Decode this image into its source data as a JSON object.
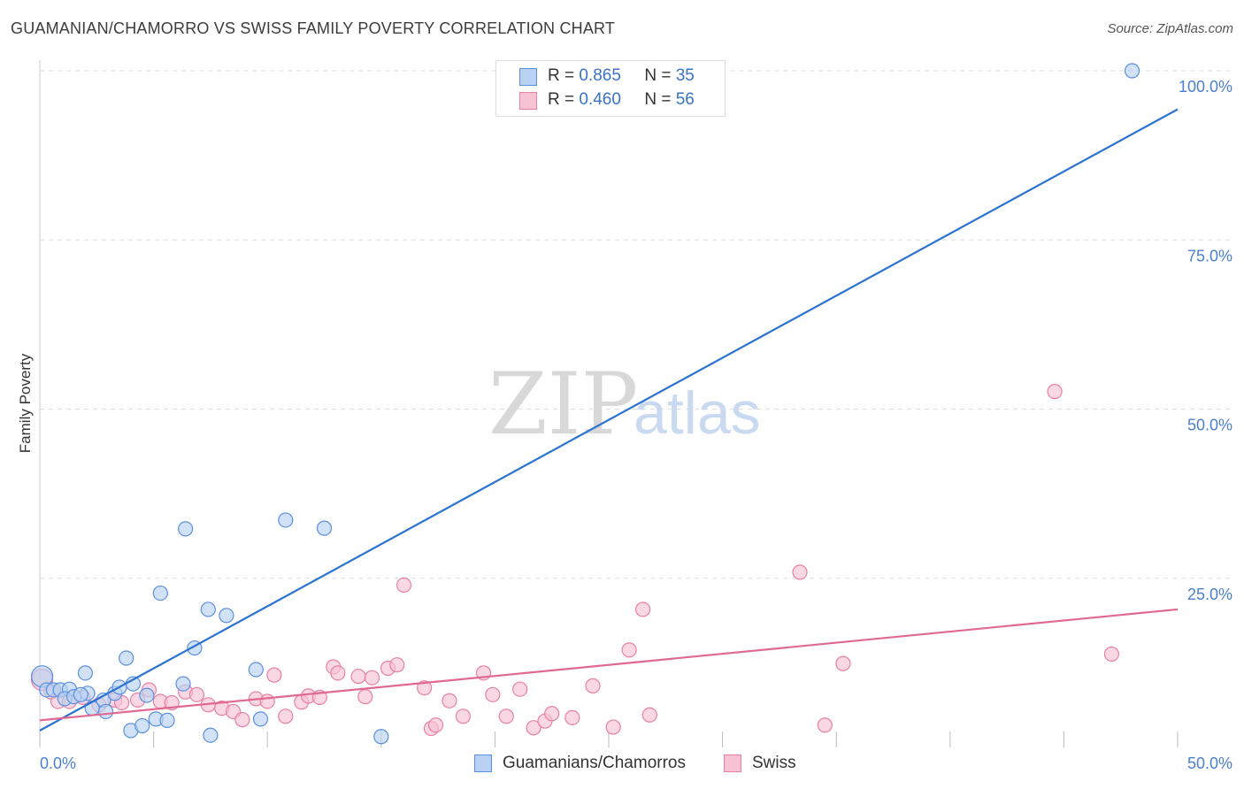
{
  "title": "GUAMANIAN/CHAMORRO VS SWISS FAMILY POVERTY CORRELATION CHART",
  "source": "Source: ZipAtlas.com",
  "colors": {
    "blue": "#5b8fe0",
    "blue_fill": "#b9d2f3",
    "blue_line": "#2a72d2",
    "pink": "#e97fa4",
    "pink_fill": "#f7c3d4",
    "pink_line": "#e06994",
    "tick_text": "#4a7fd0",
    "grid": "#dddddd"
  },
  "legend": {
    "r_label": "R =",
    "n_label": "N =",
    "series": [
      {
        "r": "0.865",
        "n": "35"
      },
      {
        "r": "0.460",
        "n": "56"
      }
    ]
  },
  "bottom_legend": {
    "items": [
      {
        "label": "Guamanians/Chamorros"
      },
      {
        "label": "Swiss"
      }
    ]
  },
  "watermark": {
    "zip": "ZIP",
    "atlas": "atlas"
  },
  "chart_data": {
    "type": "scatter",
    "title": "GUAMANIAN/CHAMORRO VS SWISS FAMILY POVERTY CORRELATION CHART",
    "xlabel": "",
    "ylabel": "Family Poverty",
    "xlim": [
      0,
      50
    ],
    "ylim": [
      0,
      100
    ],
    "x_tick_labels": [
      "0.0%",
      "50.0%"
    ],
    "y_ticks": [
      25,
      50,
      75,
      100
    ],
    "y_tick_labels": [
      "25.0%",
      "50.0%",
      "75.0%",
      "100.0%"
    ],
    "grid": true,
    "series": [
      {
        "name": "Guamanians/Chamorros",
        "color": "#5b8fe0",
        "regression": {
          "r": 0.865,
          "n": 35,
          "x0": 0,
          "y0": 2.5,
          "x1": 50,
          "y1": 94.3
        },
        "points": [
          [
            0.1,
            10.5
          ],
          [
            0.3,
            8.5
          ],
          [
            0.6,
            8.5
          ],
          [
            0.9,
            8.5
          ],
          [
            1.3,
            8.6
          ],
          [
            1.1,
            7.2
          ],
          [
            1.5,
            7.5
          ],
          [
            2.1,
            8.0
          ],
          [
            1.8,
            7.8
          ],
          [
            2.3,
            5.8
          ],
          [
            2.8,
            7.0
          ],
          [
            2.9,
            5.3
          ],
          [
            3.3,
            8.0
          ],
          [
            3.5,
            8.9
          ],
          [
            3.8,
            13.2
          ],
          [
            4.1,
            9.4
          ],
          [
            4.0,
            2.5
          ],
          [
            4.5,
            3.2
          ],
          [
            4.7,
            7.7
          ],
          [
            5.1,
            4.2
          ],
          [
            5.3,
            22.8
          ],
          [
            6.3,
            9.4
          ],
          [
            6.4,
            32.3
          ],
          [
            6.8,
            14.7
          ],
          [
            7.4,
            20.4
          ],
          [
            7.5,
            1.8
          ],
          [
            8.2,
            19.5
          ],
          [
            9.5,
            11.5
          ],
          [
            9.7,
            4.2
          ],
          [
            10.8,
            33.6
          ],
          [
            12.5,
            32.4
          ],
          [
            15.0,
            1.6
          ],
          [
            5.6,
            4.0
          ],
          [
            2.0,
            11.0
          ],
          [
            48.0,
            100.0
          ]
        ]
      },
      {
        "name": "Swiss",
        "color": "#e97fa4",
        "regression": {
          "r": 0.46,
          "n": 56,
          "x0": 0,
          "y0": 4.0,
          "x1": 50,
          "y1": 20.4
        },
        "points": [
          [
            0.1,
            10.0
          ],
          [
            0.5,
            8.2
          ],
          [
            0.8,
            6.8
          ],
          [
            1.3,
            6.8
          ],
          [
            1.9,
            7.4
          ],
          [
            2.6,
            6.3
          ],
          [
            3.3,
            7.0
          ],
          [
            3.6,
            6.6
          ],
          [
            4.3,
            7.0
          ],
          [
            4.8,
            8.5
          ],
          [
            5.3,
            6.8
          ],
          [
            5.8,
            6.6
          ],
          [
            6.4,
            8.2
          ],
          [
            6.9,
            7.8
          ],
          [
            7.4,
            6.3
          ],
          [
            8.0,
            5.8
          ],
          [
            8.5,
            5.3
          ],
          [
            8.9,
            4.1
          ],
          [
            9.5,
            7.2
          ],
          [
            10.0,
            6.8
          ],
          [
            10.3,
            10.7
          ],
          [
            10.8,
            4.6
          ],
          [
            11.5,
            6.7
          ],
          [
            11.8,
            7.6
          ],
          [
            12.3,
            7.4
          ],
          [
            12.9,
            11.9
          ],
          [
            13.1,
            11.0
          ],
          [
            14.0,
            10.5
          ],
          [
            14.3,
            7.5
          ],
          [
            14.6,
            10.3
          ],
          [
            15.3,
            11.7
          ],
          [
            15.7,
            12.2
          ],
          [
            16.0,
            24.0
          ],
          [
            16.9,
            8.8
          ],
          [
            17.2,
            2.8
          ],
          [
            17.4,
            3.3
          ],
          [
            18.0,
            6.9
          ],
          [
            18.6,
            4.6
          ],
          [
            19.5,
            11.0
          ],
          [
            19.9,
            7.8
          ],
          [
            20.5,
            4.6
          ],
          [
            21.1,
            8.6
          ],
          [
            21.7,
            2.9
          ],
          [
            22.2,
            3.9
          ],
          [
            22.5,
            5.0
          ],
          [
            23.4,
            4.4
          ],
          [
            24.3,
            9.1
          ],
          [
            25.2,
            3.0
          ],
          [
            25.9,
            14.4
          ],
          [
            26.5,
            20.4
          ],
          [
            26.8,
            4.8
          ],
          [
            33.4,
            25.9
          ],
          [
            34.5,
            3.3
          ],
          [
            35.3,
            12.4
          ],
          [
            44.6,
            52.6
          ],
          [
            47.1,
            13.8
          ]
        ]
      }
    ]
  }
}
